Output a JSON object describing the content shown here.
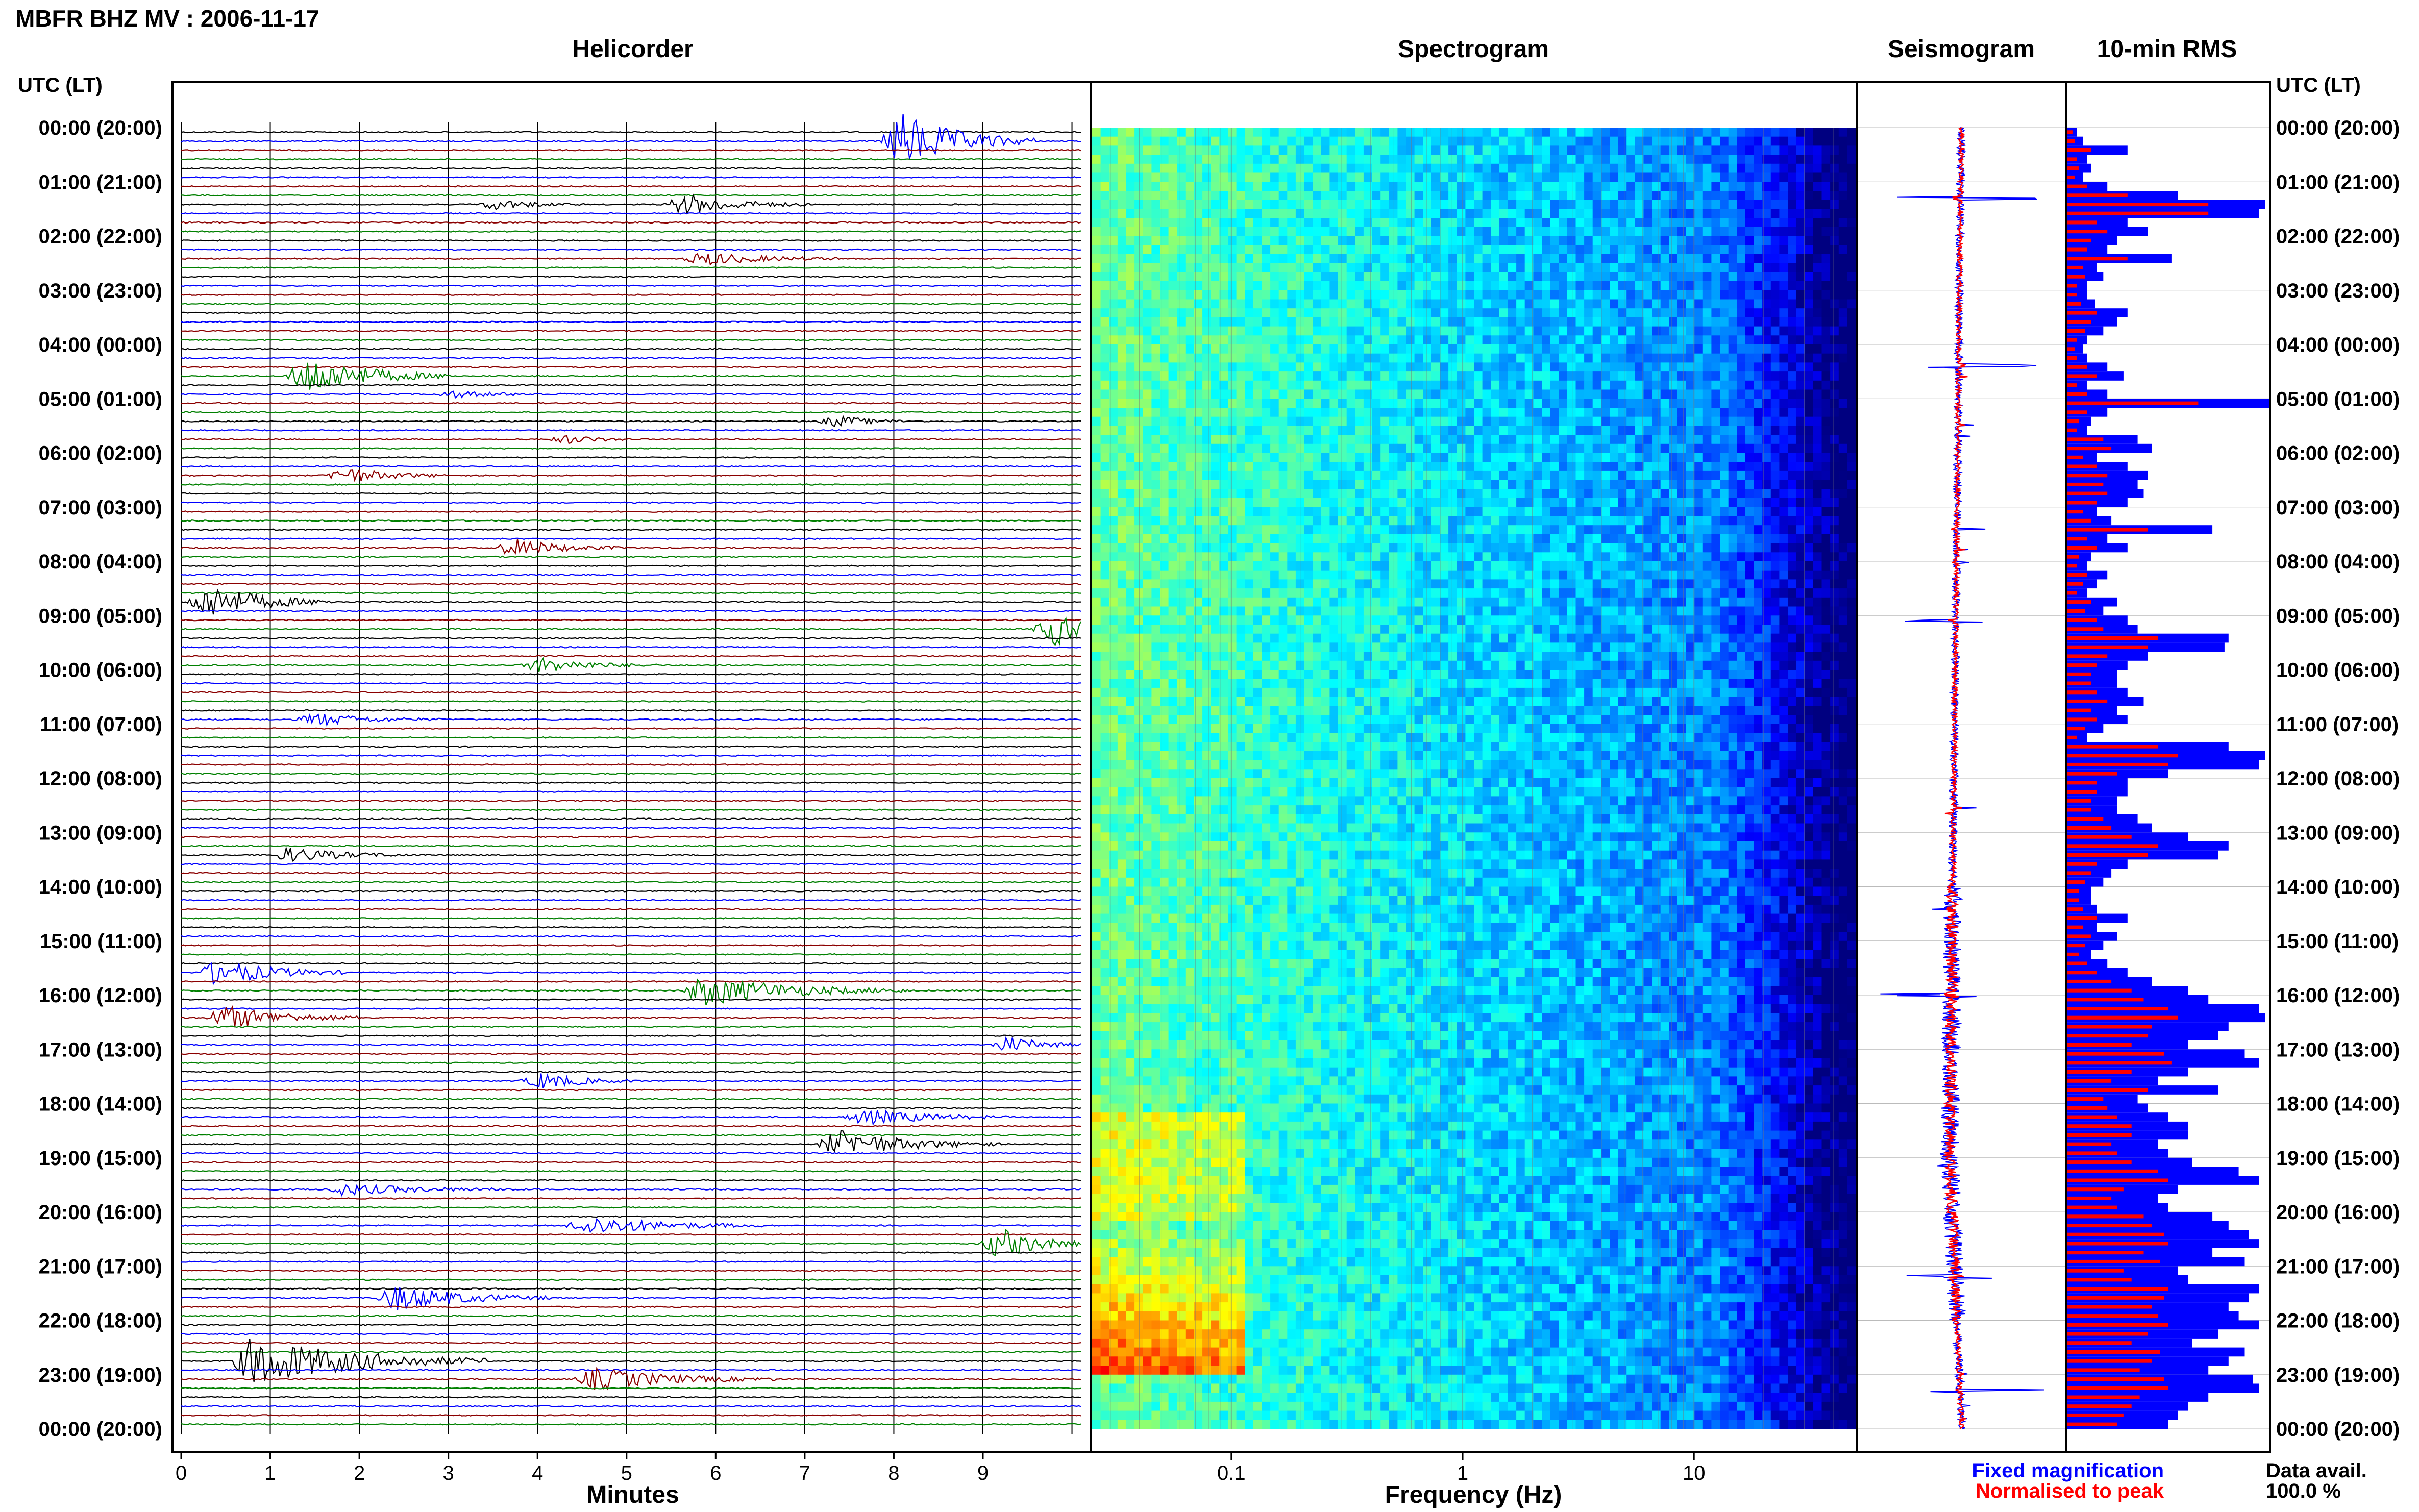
{
  "title": "MBFR BHZ MV : 2006-11-17",
  "panels": {
    "helicorder": "Helicorder",
    "spectrogram": "Spectrogram",
    "seismogram": "Seismogram",
    "rms": "10-min RMS"
  },
  "time_axis_label": "UTC (LT)",
  "time_labels": [
    "00:00 (20:00)",
    "01:00 (21:00)",
    "02:00 (22:00)",
    "03:00 (23:00)",
    "04:00 (00:00)",
    "05:00 (01:00)",
    "06:00 (02:00)",
    "07:00 (03:00)",
    "08:00 (04:00)",
    "09:00 (05:00)",
    "10:00 (06:00)",
    "11:00 (07:00)",
    "12:00 (08:00)",
    "13:00 (09:00)",
    "14:00 (10:00)",
    "15:00 (11:00)",
    "16:00 (12:00)",
    "17:00 (13:00)",
    "18:00 (14:00)",
    "19:00 (15:00)",
    "20:00 (16:00)",
    "21:00 (17:00)",
    "22:00 (18:00)",
    "23:00 (19:00)",
    "00:00 (20:00)"
  ],
  "legend": {
    "fixed": "Fixed magnification",
    "normalised": "Normalised to peak",
    "fixed_color": "#0000ff",
    "normalised_color": "#ff0000"
  },
  "data_avail": {
    "label": "Data avail.",
    "value": "100.0 %"
  },
  "colors": {
    "trace_cycle": [
      "#000000",
      "#0000ff",
      "#8b0000",
      "#008000"
    ]
  },
  "chart_data": [
    {
      "type": "line",
      "name": "helicorder",
      "title": "Helicorder",
      "xlabel": "Minutes",
      "ylabel": "UTC (LT)",
      "xlim": [
        0,
        10
      ],
      "x_ticks": [
        "0",
        "1",
        "2",
        "3",
        "4",
        "5",
        "6",
        "7",
        "8",
        "9"
      ],
      "rows": 144,
      "minutes_per_row": 10,
      "events": [
        {
          "row": 1,
          "minute": 8.0,
          "amp": 3.6,
          "dur": 1.5,
          "color": "#008000"
        },
        {
          "row": 8,
          "minute": 5.6,
          "amp": 1.3,
          "dur": 1.4,
          "color": "#000000"
        },
        {
          "row": 8,
          "minute": 3.5,
          "amp": 0.6,
          "dur": 1.0,
          "color": "#000000"
        },
        {
          "row": 14,
          "minute": 5.8,
          "amp": 0.8,
          "dur": 1.6,
          "color": "#008000"
        },
        {
          "row": 27,
          "minute": 1.4,
          "amp": 2.5,
          "dur": 1.6,
          "color": "#0000ff"
        },
        {
          "row": 29,
          "minute": 3.0,
          "amp": 0.4,
          "dur": 1.4,
          "color": "#0000ff"
        },
        {
          "row": 32,
          "minute": 7.3,
          "amp": 0.7,
          "dur": 0.8,
          "color": "#000000"
        },
        {
          "row": 34,
          "minute": 4.3,
          "amp": 0.5,
          "dur": 0.8,
          "color": "#8b0000"
        },
        {
          "row": 38,
          "minute": 1.8,
          "amp": 1.0,
          "dur": 1.2,
          "color": "#8b0000"
        },
        {
          "row": 46,
          "minute": 3.7,
          "amp": 1.1,
          "dur": 1.2,
          "color": "#0000ff"
        },
        {
          "row": 52,
          "minute": 0.3,
          "amp": 2.2,
          "dur": 1.4,
          "color": "#008000"
        },
        {
          "row": 55,
          "minute": 9.7,
          "amp": 2.0,
          "dur": 1.2,
          "color": "#0000ff"
        },
        {
          "row": 59,
          "minute": 4.0,
          "amp": 0.9,
          "dur": 1.3,
          "color": "#008000"
        },
        {
          "row": 65,
          "minute": 1.5,
          "amp": 0.8,
          "dur": 1.4,
          "color": "#008000"
        },
        {
          "row": 80,
          "minute": 1.2,
          "amp": 0.9,
          "dur": 1.4,
          "color": "#8b0000"
        },
        {
          "row": 93,
          "minute": 0.4,
          "amp": 1.6,
          "dur": 1.5,
          "color": "#0000ff"
        },
        {
          "row": 95,
          "minute": 5.8,
          "amp": 1.9,
          "dur": 2.3,
          "color": "#008000"
        },
        {
          "row": 98,
          "minute": 0.5,
          "amp": 1.5,
          "dur": 1.5,
          "color": "#000000"
        },
        {
          "row": 101,
          "minute": 9.2,
          "amp": 1.0,
          "dur": 0.9,
          "color": "#8b0000"
        },
        {
          "row": 105,
          "minute": 4.0,
          "amp": 1.0,
          "dur": 1.1,
          "color": "#8b0000"
        },
        {
          "row": 109,
          "minute": 7.6,
          "amp": 1.0,
          "dur": 1.6,
          "color": "#0000ff"
        },
        {
          "row": 112,
          "minute": 7.3,
          "amp": 1.7,
          "dur": 1.8,
          "color": "#0000ff"
        },
        {
          "row": 117,
          "minute": 1.8,
          "amp": 0.7,
          "dur": 2.0,
          "color": "#000000"
        },
        {
          "row": 121,
          "minute": 4.5,
          "amp": 1.2,
          "dur": 2.0,
          "color": "#000000"
        },
        {
          "row": 123,
          "minute": 9.1,
          "amp": 2.0,
          "dur": 1.0,
          "color": "#008000"
        },
        {
          "row": 129,
          "minute": 2.4,
          "amp": 1.6,
          "dur": 1.7,
          "color": "#008000"
        },
        {
          "row": 136,
          "minute": 0.8,
          "amp": 3.2,
          "dur": 2.6,
          "color": "#008000"
        },
        {
          "row": 138,
          "minute": 4.6,
          "amp": 1.4,
          "dur": 2.0,
          "color": "#0000ff"
        }
      ]
    },
    {
      "type": "heatmap",
      "name": "spectrogram",
      "title": "Spectrogram",
      "xlabel": "Frequency (Hz)",
      "x_scale": "log",
      "xlim": [
        0.025,
        50
      ],
      "x_ticks": [
        0.1,
        1,
        10
      ],
      "x_tick_labels": [
        "0.1",
        "1",
        "10"
      ],
      "rows": 144,
      "colormap": "jet",
      "notes_hours": [
        22,
        23
      ]
    },
    {
      "type": "line",
      "name": "seismogram",
      "title": "Seismogram",
      "series": [
        {
          "name": "Fixed magnification",
          "color": "#0000ff"
        },
        {
          "name": "Normalised to peak",
          "color": "#ff0000"
        }
      ],
      "rows": 144,
      "spike_hours": [
        1.3,
        4.4,
        9.1,
        16.0,
        21.2,
        23.3
      ]
    },
    {
      "type": "bar",
      "name": "rms",
      "title": "10-min RMS",
      "orientation": "horizontal",
      "rows": 144,
      "xlim": [
        0,
        1
      ],
      "fixed_magnification": [
        0.05,
        0.08,
        0.3,
        0.1,
        0.12,
        0.08,
        0.2,
        0.55,
        0.98,
        0.95,
        0.3,
        0.4,
        0.25,
        0.2,
        0.52,
        0.15,
        0.18,
        0.1,
        0.1,
        0.14,
        0.3,
        0.25,
        0.18,
        0.1,
        0.08,
        0.1,
        0.2,
        0.28,
        0.1,
        0.2,
        1.0,
        0.2,
        0.12,
        0.1,
        0.35,
        0.42,
        0.15,
        0.3,
        0.4,
        0.35,
        0.38,
        0.3,
        0.15,
        0.22,
        0.72,
        0.2,
        0.3,
        0.12,
        0.1,
        0.2,
        0.15,
        0.1,
        0.25,
        0.18,
        0.3,
        0.35,
        0.8,
        0.78,
        0.4,
        0.3,
        0.25,
        0.25,
        0.3,
        0.38,
        0.25,
        0.3,
        0.18,
        0.1,
        0.8,
        0.98,
        0.95,
        0.5,
        0.3,
        0.3,
        0.25,
        0.25,
        0.35,
        0.42,
        0.6,
        0.8,
        0.75,
        0.3,
        0.22,
        0.18,
        0.12,
        0.12,
        0.15,
        0.3,
        0.15,
        0.25,
        0.18,
        0.12,
        0.2,
        0.3,
        0.42,
        0.6,
        0.7,
        0.95,
        0.98,
        0.8,
        0.75,
        0.6,
        0.88,
        0.95,
        0.6,
        0.45,
        0.75,
        0.35,
        0.4,
        0.5,
        0.6,
        0.6,
        0.45,
        0.5,
        0.62,
        0.85,
        0.95,
        0.55,
        0.45,
        0.5,
        0.72,
        0.8,
        0.9,
        0.95,
        0.72,
        0.88,
        0.55,
        0.6,
        0.95,
        0.9,
        0.8,
        0.85,
        0.95,
        0.75,
        0.62,
        0.88,
        0.8,
        0.7,
        0.92,
        0.95,
        0.7,
        0.6,
        0.55,
        0.5
      ],
      "normalised_to_peak": [
        0.03,
        0.04,
        0.12,
        0.05,
        0.06,
        0.04,
        0.1,
        0.3,
        0.7,
        0.7,
        0.15,
        0.2,
        0.12,
        0.1,
        0.3,
        0.08,
        0.09,
        0.05,
        0.05,
        0.07,
        0.15,
        0.12,
        0.09,
        0.05,
        0.04,
        0.05,
        0.1,
        0.15,
        0.05,
        0.1,
        0.65,
        0.1,
        0.06,
        0.05,
        0.18,
        0.22,
        0.08,
        0.15,
        0.2,
        0.18,
        0.2,
        0.15,
        0.08,
        0.12,
        0.4,
        0.1,
        0.15,
        0.06,
        0.05,
        0.1,
        0.08,
        0.05,
        0.12,
        0.09,
        0.15,
        0.18,
        0.45,
        0.4,
        0.2,
        0.15,
        0.12,
        0.12,
        0.15,
        0.2,
        0.12,
        0.15,
        0.09,
        0.05,
        0.45,
        0.55,
        0.5,
        0.25,
        0.15,
        0.15,
        0.12,
        0.12,
        0.18,
        0.22,
        0.32,
        0.45,
        0.4,
        0.15,
        0.12,
        0.09,
        0.06,
        0.06,
        0.08,
        0.15,
        0.08,
        0.12,
        0.09,
        0.06,
        0.1,
        0.15,
        0.22,
        0.32,
        0.38,
        0.5,
        0.55,
        0.42,
        0.4,
        0.32,
        0.48,
        0.52,
        0.32,
        0.22,
        0.4,
        0.18,
        0.2,
        0.25,
        0.32,
        0.32,
        0.22,
        0.25,
        0.32,
        0.45,
        0.5,
        0.28,
        0.22,
        0.25,
        0.38,
        0.42,
        0.48,
        0.5,
        0.38,
        0.46,
        0.28,
        0.32,
        0.5,
        0.48,
        0.42,
        0.45,
        0.5,
        0.4,
        0.32,
        0.46,
        0.42,
        0.36,
        0.48,
        0.5,
        0.36,
        0.32,
        0.28,
        0.25
      ]
    }
  ]
}
